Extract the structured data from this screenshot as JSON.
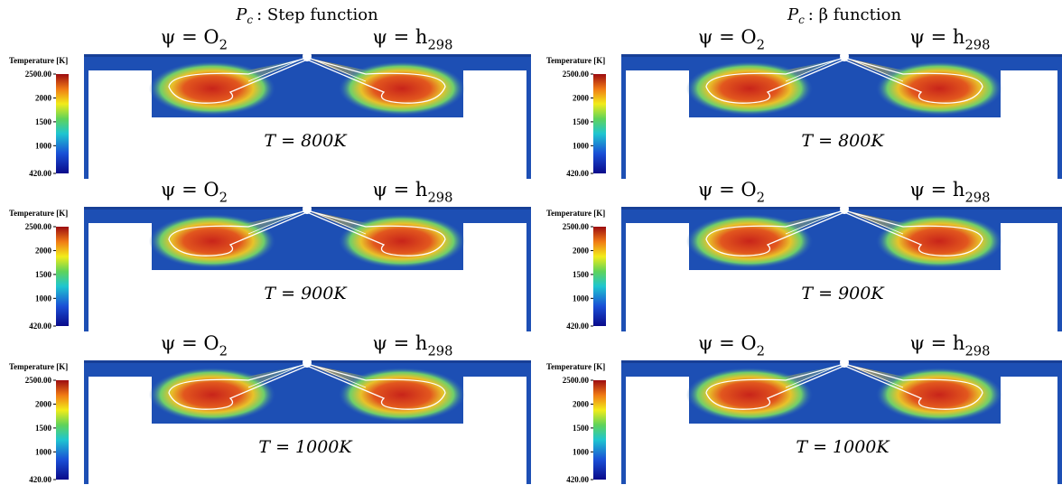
{
  "columns": [
    {
      "title": {
        "symbol": "P",
        "sub": "c",
        "text": ": Step function"
      },
      "panels": [
        {
          "label": "T = 800K"
        },
        {
          "label": "T = 900K"
        },
        {
          "label": "T = 1000K"
        }
      ]
    },
    {
      "title": {
        "symbol": "P",
        "sub": "c",
        "text": ": β function"
      },
      "panels": [
        {
          "label": "T = 800K"
        },
        {
          "label": "T = 900K"
        },
        {
          "label": "T = 1000K"
        }
      ]
    }
  ],
  "left_label": {
    "text": "ψ = O",
    "sub": "2"
  },
  "right_label": {
    "text": "ψ = h",
    "sub": "298"
  },
  "colorbar": {
    "title": "Temperature [K]",
    "range": [
      420,
      2500
    ],
    "ticks": [
      {
        "value": 2500,
        "label": "2500.00"
      },
      2000,
      1500,
      1000,
      {
        "value": 420,
        "label": "420.00"
      }
    ]
  }
}
